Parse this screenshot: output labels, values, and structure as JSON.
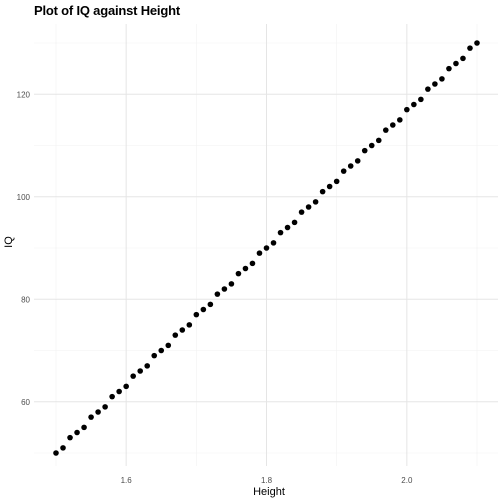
{
  "chart_data": {
    "type": "scatter",
    "title": "Plot of IQ against Height",
    "xlabel": "Height",
    "ylabel": "IQ",
    "xlim": [
      1.5,
      2.1
    ],
    "ylim": [
      50,
      130
    ],
    "x_ticks": [
      1.6,
      1.8,
      2.0
    ],
    "x_tick_labels": [
      "1.6",
      "1.8",
      "2.0"
    ],
    "y_ticks": [
      60,
      80,
      100,
      120
    ],
    "y_tick_labels": [
      "60",
      "80",
      "100",
      "120"
    ],
    "grid": true,
    "point_color": "#000000",
    "series": [
      {
        "x": [
          1.5,
          1.51,
          1.52,
          1.53,
          1.54,
          1.55,
          1.56,
          1.57,
          1.58,
          1.59,
          1.6,
          1.61,
          1.62,
          1.63,
          1.64,
          1.65,
          1.66,
          1.67,
          1.68,
          1.69,
          1.7,
          1.71,
          1.72,
          1.73,
          1.74,
          1.75,
          1.76,
          1.77,
          1.78,
          1.79,
          1.8,
          1.81,
          1.82,
          1.83,
          1.84,
          1.85,
          1.86,
          1.87,
          1.88,
          1.89,
          1.9,
          1.91,
          1.92,
          1.93,
          1.94,
          1.95,
          1.96,
          1.97,
          1.98,
          1.99,
          2.0,
          2.01,
          2.02,
          2.03,
          2.04,
          2.05,
          2.06,
          2.07,
          2.08,
          2.09,
          2.1
        ],
        "y": [
          50,
          51,
          53,
          54,
          55,
          57,
          58,
          59,
          61,
          62,
          63,
          65,
          66,
          67,
          69,
          70,
          71,
          73,
          74,
          75,
          77,
          78,
          79,
          81,
          82,
          83,
          85,
          86,
          87,
          89,
          90,
          91,
          93,
          94,
          95,
          97,
          98,
          99,
          101,
          102,
          103,
          105,
          106,
          107,
          109,
          110,
          111,
          113,
          114,
          115,
          117,
          118,
          119,
          121,
          122,
          123,
          125,
          126,
          127,
          129,
          130
        ]
      }
    ]
  }
}
